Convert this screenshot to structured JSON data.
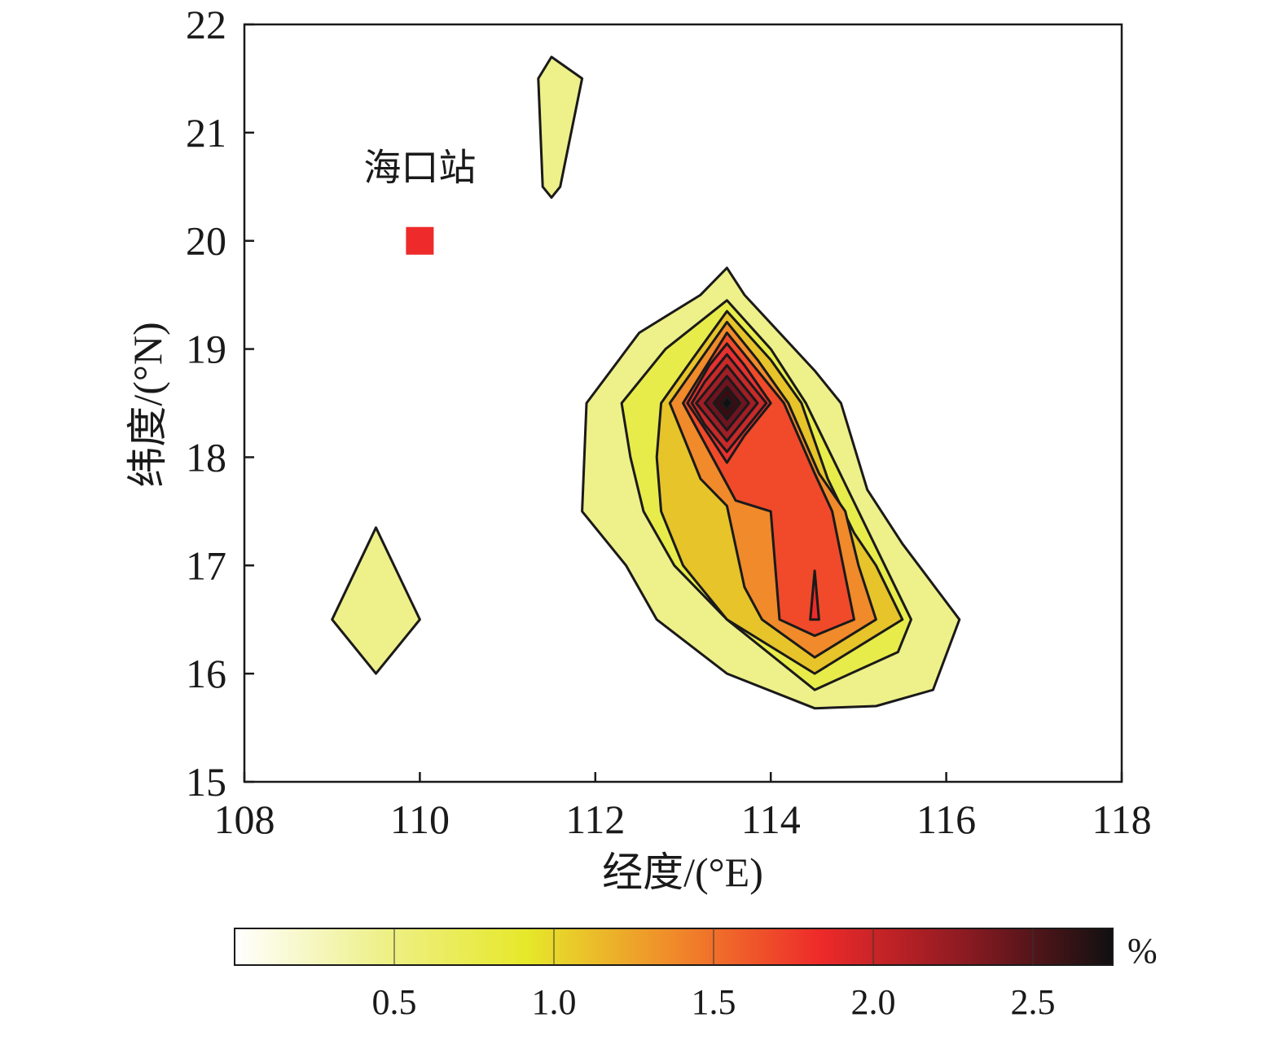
{
  "chart_data": {
    "type": "contour",
    "xlabel": "经度/(°E)",
    "ylabel": "纬度/(°N)",
    "xlim": [
      108,
      118
    ],
    "ylim": [
      15,
      22
    ],
    "xticks": [
      "108",
      "110",
      "112",
      "114",
      "116",
      "118"
    ],
    "yticks": [
      "15",
      "16",
      "17",
      "18",
      "19",
      "20",
      "21",
      "22"
    ],
    "grid": false,
    "annotation": {
      "text": "海口站",
      "lon": 110,
      "lat": 20,
      "marker": "square",
      "marker_color": "#ee2a2a"
    },
    "colorbar": {
      "unit": "%",
      "min": 0,
      "max": 2.75,
      "ticks": [
        "0.5",
        "1.0",
        "1.5",
        "2.0",
        "2.5"
      ],
      "colors": [
        "#ffffff",
        "#eef08a",
        "#e6e82a",
        "#f08a2a",
        "#ee2a2a",
        "#8b1a22",
        "#101010"
      ]
    },
    "contour_levels": [
      0.25,
      0.5,
      0.75,
      1.0,
      1.25,
      1.5,
      1.75,
      2.0,
      2.25,
      2.5
    ],
    "regions": [
      {
        "name": "north-island",
        "level": 0.25,
        "color": "#eef08a",
        "points": [
          [
            111.35,
            21.5
          ],
          [
            111.5,
            21.7
          ],
          [
            111.85,
            21.5
          ],
          [
            111.6,
            20.5
          ],
          [
            111.5,
            20.4
          ],
          [
            111.4,
            20.5
          ]
        ]
      },
      {
        "name": "west-diamond",
        "level": 0.25,
        "color": "#eef08a",
        "points": [
          [
            109.0,
            16.5
          ],
          [
            109.5,
            17.35
          ],
          [
            110.0,
            16.5
          ],
          [
            109.5,
            16.0
          ]
        ]
      },
      {
        "name": "main-level-1",
        "level": 0.25,
        "color": "#eef08a",
        "points": [
          [
            113.5,
            19.75
          ],
          [
            113.7,
            19.5
          ],
          [
            114.5,
            18.8
          ],
          [
            114.8,
            18.5
          ],
          [
            115.1,
            17.7
          ],
          [
            115.5,
            17.2
          ],
          [
            116.15,
            16.5
          ],
          [
            115.85,
            15.85
          ],
          [
            115.2,
            15.7
          ],
          [
            114.5,
            15.68
          ],
          [
            113.5,
            16.0
          ],
          [
            112.7,
            16.5
          ],
          [
            112.35,
            17.0
          ],
          [
            111.85,
            17.5
          ],
          [
            111.9,
            18.5
          ],
          [
            112.5,
            19.15
          ],
          [
            113.2,
            19.5
          ]
        ]
      },
      {
        "name": "main-level-2",
        "level": 0.5,
        "color": "#e8ec4a",
        "points": [
          [
            113.5,
            19.45
          ],
          [
            114.0,
            19.0
          ],
          [
            114.4,
            18.5
          ],
          [
            114.7,
            18.0
          ],
          [
            115.0,
            17.5
          ],
          [
            115.3,
            17.0
          ],
          [
            115.6,
            16.5
          ],
          [
            115.45,
            16.2
          ],
          [
            114.5,
            15.85
          ],
          [
            113.5,
            16.5
          ],
          [
            112.9,
            17.0
          ],
          [
            112.55,
            17.5
          ],
          [
            112.4,
            18.0
          ],
          [
            112.3,
            18.5
          ],
          [
            112.8,
            19.0
          ]
        ]
      },
      {
        "name": "main-level-3",
        "level": 0.75,
        "color": "#e6c42a",
        "points": [
          [
            113.5,
            19.35
          ],
          [
            114.0,
            18.9
          ],
          [
            114.35,
            18.5
          ],
          [
            114.65,
            17.8
          ],
          [
            114.95,
            17.3
          ],
          [
            115.2,
            17.0
          ],
          [
            115.5,
            16.5
          ],
          [
            114.5,
            16.0
          ],
          [
            113.5,
            16.5
          ],
          [
            113.0,
            17.0
          ],
          [
            112.75,
            17.5
          ],
          [
            112.7,
            18.0
          ],
          [
            112.75,
            18.5
          ],
          [
            113.1,
            18.9
          ]
        ]
      },
      {
        "name": "main-level-4",
        "level": 1.0,
        "color": "#f08a2a",
        "points": [
          [
            113.5,
            19.25
          ],
          [
            113.85,
            18.9
          ],
          [
            114.2,
            18.5
          ],
          [
            114.55,
            17.85
          ],
          [
            114.85,
            17.5
          ],
          [
            115.0,
            17.0
          ],
          [
            115.2,
            16.5
          ],
          [
            114.5,
            16.15
          ],
          [
            113.9,
            16.5
          ],
          [
            113.7,
            16.8
          ],
          [
            113.5,
            17.55
          ],
          [
            113.2,
            17.8
          ],
          [
            112.85,
            18.5
          ]
        ]
      },
      {
        "name": "main-level-5",
        "level": 1.25,
        "color": "#f04a2a",
        "points": [
          [
            113.5,
            19.15
          ],
          [
            113.85,
            18.8
          ],
          [
            114.15,
            18.5
          ],
          [
            114.5,
            17.85
          ],
          [
            114.7,
            17.5
          ],
          [
            114.85,
            16.9
          ],
          [
            114.95,
            16.5
          ],
          [
            114.5,
            16.35
          ],
          [
            114.1,
            16.5
          ],
          [
            114.0,
            17.5
          ],
          [
            113.6,
            17.6
          ],
          [
            113.5,
            17.75
          ],
          [
            113.0,
            18.5
          ]
        ]
      },
      {
        "name": "main-level-6",
        "level": 1.5,
        "color": "#e83030",
        "points": [
          [
            113.5,
            19.05
          ],
          [
            113.7,
            18.85
          ],
          [
            114.0,
            18.5
          ],
          [
            113.7,
            18.2
          ],
          [
            113.5,
            17.95
          ],
          [
            113.3,
            18.2
          ],
          [
            113.05,
            18.5
          ],
          [
            113.3,
            18.85
          ]
        ]
      },
      {
        "name": "main-level-7",
        "level": 1.75,
        "color": "#c82a2a",
        "points": [
          [
            113.5,
            18.95
          ],
          [
            113.75,
            18.7
          ],
          [
            113.95,
            18.5
          ],
          [
            113.75,
            18.3
          ],
          [
            113.5,
            18.05
          ],
          [
            113.25,
            18.3
          ],
          [
            113.1,
            18.5
          ],
          [
            113.25,
            18.7
          ]
        ]
      },
      {
        "name": "main-level-8",
        "level": 2.0,
        "color": "#a01e26",
        "points": [
          [
            113.5,
            18.85
          ],
          [
            113.85,
            18.5
          ],
          [
            113.5,
            18.15
          ],
          [
            113.15,
            18.5
          ]
        ]
      },
      {
        "name": "main-level-9",
        "level": 2.25,
        "color": "#6e1420",
        "points": [
          [
            113.5,
            18.75
          ],
          [
            113.75,
            18.5
          ],
          [
            113.5,
            18.25
          ],
          [
            113.25,
            18.5
          ]
        ]
      },
      {
        "name": "main-level-10",
        "level": 2.5,
        "color": "#3a0c12",
        "points": [
          [
            113.5,
            18.65
          ],
          [
            113.65,
            18.5
          ],
          [
            113.5,
            18.35
          ],
          [
            113.35,
            18.5
          ]
        ]
      },
      {
        "name": "main-peak",
        "level": 2.75,
        "color": "#101010",
        "points": [
          [
            113.5,
            18.56
          ],
          [
            113.56,
            18.5
          ],
          [
            113.5,
            18.44
          ],
          [
            113.44,
            18.5
          ]
        ]
      },
      {
        "name": "sliver",
        "level": 1.5,
        "color": "#ee2a2a",
        "points": [
          [
            114.5,
            16.95
          ],
          [
            114.55,
            16.5
          ],
          [
            114.45,
            16.5
          ]
        ]
      }
    ]
  }
}
